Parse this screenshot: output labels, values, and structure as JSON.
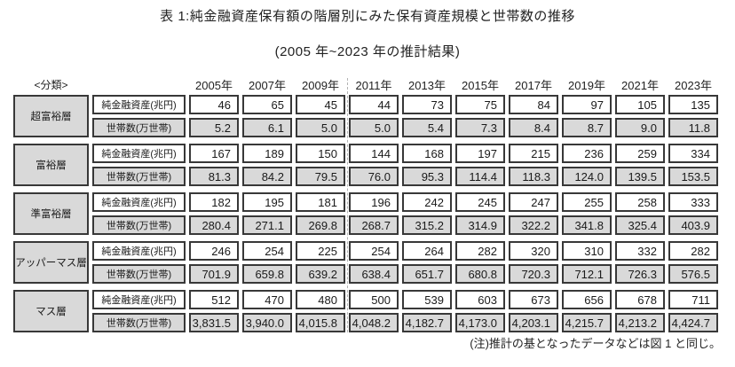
{
  "title": "表 1:純金融資産保有額の階層別にみた保有資産規模と世帯数の推移",
  "subtitle": "(2005 年~2023 年の推計結果)",
  "note": "(注)推計の基となったデータなどは図 1 と同じ。",
  "table": {
    "classification_header": "<分類>"
  },
  "colors": {
    "cell_fill_gray": "#d9d9d9",
    "cell_fill_white": "#ffffff",
    "border": "#383838",
    "pagebreak_dotted_line": "#b3b3b3"
  },
  "chart_data": {
    "type": "table",
    "years": [
      "2005年",
      "2007年",
      "2009年",
      "2011年",
      "2013年",
      "2015年",
      "2017年",
      "2019年",
      "2021年",
      "2023年"
    ],
    "row_labels": {
      "assets": "純金融資産(兆円)",
      "households": "世帯数(万世帯)"
    },
    "categories": [
      {
        "name": "超富裕層",
        "assets": [
          "46",
          "65",
          "45",
          "44",
          "73",
          "75",
          "84",
          "97",
          "105",
          "135"
        ],
        "households": [
          "5.2",
          "6.1",
          "5.0",
          "5.0",
          "5.4",
          "7.3",
          "8.4",
          "8.7",
          "9.0",
          "11.8"
        ]
      },
      {
        "name": "富裕層",
        "assets": [
          "167",
          "189",
          "150",
          "144",
          "168",
          "197",
          "215",
          "236",
          "259",
          "334"
        ],
        "households": [
          "81.3",
          "84.2",
          "79.5",
          "76.0",
          "95.3",
          "114.4",
          "118.3",
          "124.0",
          "139.5",
          "153.5"
        ]
      },
      {
        "name": "準富裕層",
        "assets": [
          "182",
          "195",
          "181",
          "196",
          "242",
          "245",
          "247",
          "255",
          "258",
          "333"
        ],
        "households": [
          "280.4",
          "271.1",
          "269.8",
          "268.7",
          "315.2",
          "314.9",
          "322.2",
          "341.8",
          "325.4",
          "403.9"
        ]
      },
      {
        "name": "アッパーマス層",
        "assets": [
          "246",
          "254",
          "225",
          "254",
          "264",
          "282",
          "320",
          "310",
          "332",
          "282"
        ],
        "households": [
          "701.9",
          "659.8",
          "639.2",
          "638.4",
          "651.7",
          "680.8",
          "720.3",
          "712.1",
          "726.3",
          "576.5"
        ]
      },
      {
        "name": "マス層",
        "assets": [
          "512",
          "470",
          "480",
          "500",
          "539",
          "603",
          "673",
          "656",
          "678",
          "711"
        ],
        "households": [
          "3,831.5",
          "3,940.0",
          "4,015.8",
          "4,048.2",
          "4,182.7",
          "4,173.0",
          "4,203.1",
          "4,215.7",
          "4,213.2",
          "4,424.7"
        ]
      }
    ]
  }
}
